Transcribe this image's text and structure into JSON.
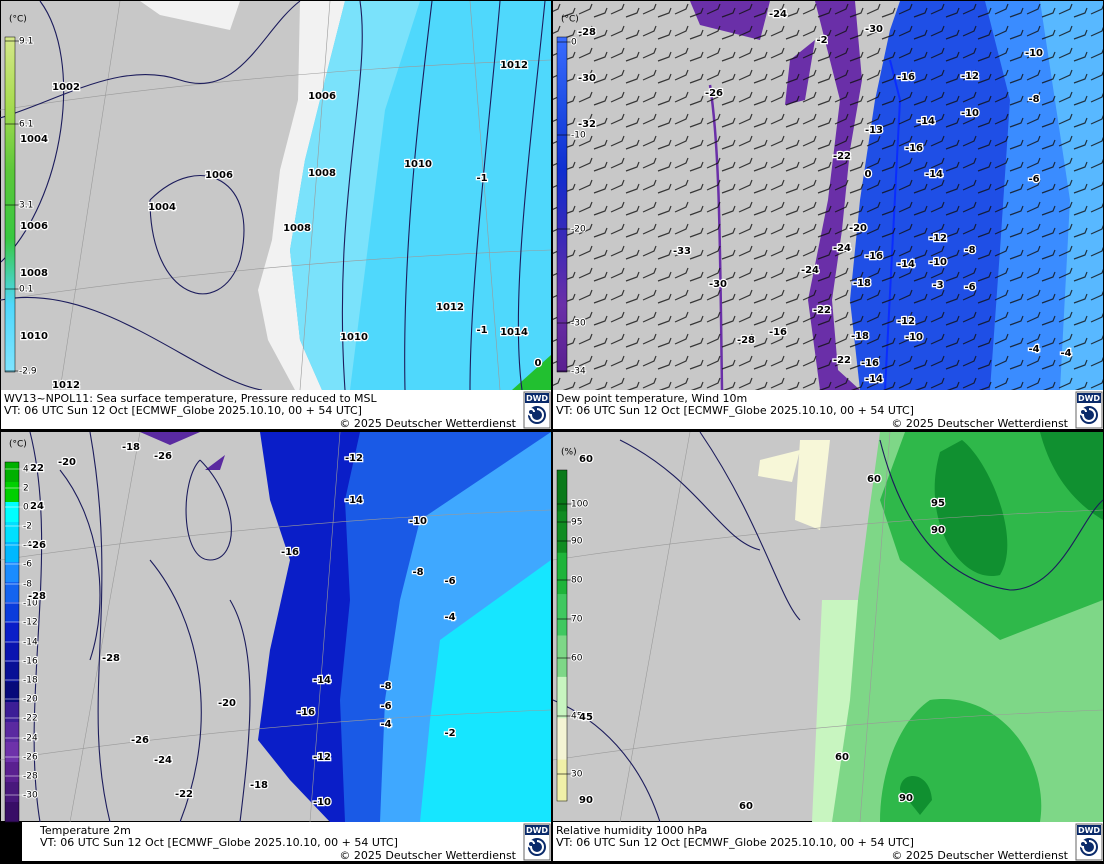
{
  "panels": [
    {
      "unit": "(°C)",
      "scale": [
        "9.1",
        "6.1",
        "3.1",
        "0.1",
        "-2.9"
      ],
      "caption": "WV13~NPOL11: Sea surface temperature,  Pressure reduced to MSL",
      "valid": "VT: 06 UTC Sun  12 Oct [ECMWF_Globe 2025.10.10, 00 + 54 UTC]",
      "copyright": "© 2025 Deutscher Wetterdienst",
      "logo": "DWD",
      "labels": [
        "1002",
        "1004",
        "1006",
        "1008",
        "1010",
        "1012",
        "1006",
        "1004",
        "1006",
        "1008",
        "1008",
        "1010",
        "1012",
        "1012",
        "1010",
        "1014",
        "-1",
        "-1",
        "0"
      ]
    },
    {
      "unit": "(°C)",
      "scale": [
        "0",
        "-10",
        "-20",
        "-30",
        "-34"
      ],
      "caption": "Dew point temperature, Wind 10m",
      "valid": "VT: 06 UTC Sun  12 Oct [ECMWF_Globe 2025.10.10,  00 + 54 UTC]",
      "copyright": "© 2025 Deutscher Wetterdienst",
      "logo": "DWD",
      "labels": [
        "-28",
        "-30",
        "-32",
        "-26",
        "-24",
        "-2",
        "-30",
        "-16",
        "-12",
        "-10",
        "-8",
        "-10",
        "-14",
        "-13",
        "-16",
        "-22",
        "-14",
        "0",
        "-20",
        "-24",
        "-16",
        "-14",
        "-12",
        "-10",
        "-8",
        "-3",
        "-6",
        "-33",
        "-30",
        "-24",
        "-18",
        "-22",
        "-16",
        "-28",
        "-18",
        "-12",
        "-10",
        "-22",
        "-16",
        "-14",
        "-4",
        "-4",
        "-6"
      ]
    },
    {
      "unit": "(°C)",
      "scale": [
        "4",
        "2",
        "0",
        "-2",
        "-4",
        "-6",
        "-8",
        "-10",
        "-12",
        "-14",
        "-16",
        "-18",
        "-20",
        "-22",
        "-24",
        "-26",
        "-28",
        "-30"
      ],
      "caption": "Temperature 2m",
      "valid": "VT: 06 UTC Sun  12 Oct [ECMWF_Globe 2025.10.10, 00 + 54 UTC]",
      "copyright": "© 2025 Deutscher Wetterdienst",
      "logo": "DWD",
      "labels": [
        "-18",
        "-26",
        "-20",
        "-12",
        "-14",
        "-10",
        "-16",
        "-8",
        "-6",
        "-4",
        "-28",
        "-14",
        "-8",
        "-6",
        "-16",
        "-4",
        "-20",
        "-26",
        "-24",
        "-12",
        "-2",
        "-22",
        "-18",
        "-10",
        "22",
        "24",
        "-26",
        "-28"
      ]
    },
    {
      "unit": "(%)",
      "scale": [
        "100",
        "95",
        "90",
        "80",
        "70",
        "60",
        "45",
        "30"
      ],
      "caption": "Relative humidity 1000 hPa",
      "valid": "VT: 06 UTC Sun  12 Oct [ECMWF_Globe 2025.10.10,  00 + 54 UTC]",
      "copyright": "© 2025 Deutscher Wetterdienst",
      "logo": "DWD",
      "labels": [
        "60",
        "60",
        "95",
        "90",
        "60",
        "60",
        "90",
        "90",
        "45"
      ]
    }
  ]
}
